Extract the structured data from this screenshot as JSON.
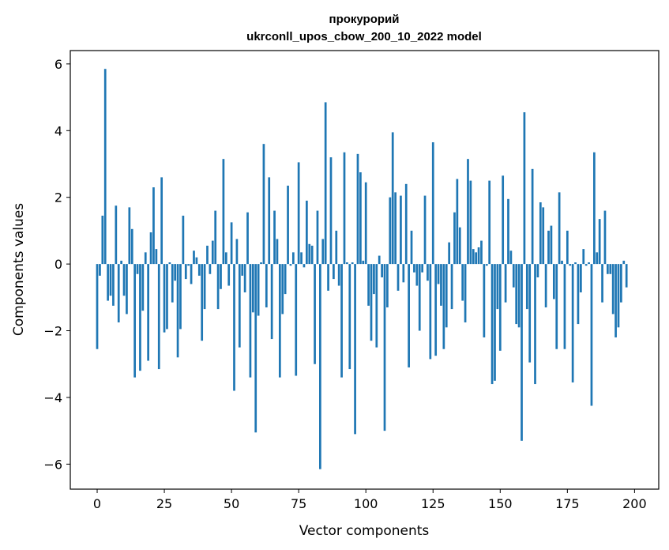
{
  "chart_data": {
    "type": "bar",
    "title": "прокурорий",
    "subtitle": "ukrconll_upos_cbow_200_10_2022 model",
    "xlabel": "Vector components",
    "ylabel": "Components values",
    "xlim": [
      -10,
      209
    ],
    "ylim": [
      -6.75,
      6.4
    ],
    "xticks": [
      0,
      25,
      50,
      75,
      100,
      125,
      150,
      175,
      200
    ],
    "yticks": [
      -6,
      -4,
      -2,
      0,
      2,
      4,
      6
    ],
    "xtick_labels": [
      "0",
      "25",
      "50",
      "75",
      "100",
      "125",
      "150",
      "175",
      "200"
    ],
    "ytick_labels": [
      "−6",
      "−4",
      "−2",
      "0",
      "2",
      "4",
      "6"
    ],
    "grid": false,
    "color": "#1f77b4",
    "values": [
      -2.55,
      -0.35,
      1.45,
      5.85,
      -1.1,
      -0.95,
      -1.25,
      1.75,
      -1.75,
      0.1,
      -0.95,
      -1.5,
      1.7,
      1.05,
      -3.4,
      -0.3,
      -3.2,
      -1.4,
      0.35,
      -2.9,
      0.95,
      2.3,
      0.45,
      -3.15,
      2.6,
      -2.05,
      -1.95,
      0.05,
      -1.15,
      -0.5,
      -2.8,
      -1.95,
      1.45,
      -0.45,
      -0.05,
      -0.6,
      0.4,
      0.2,
      -0.35,
      -2.3,
      -1.35,
      0.55,
      -0.3,
      0.7,
      1.6,
      -1.35,
      -0.75,
      3.15,
      0.35,
      -0.65,
      1.25,
      -3.8,
      0.75,
      -2.5,
      -0.35,
      -0.85,
      1.55,
      -3.4,
      -1.45,
      -5.05,
      -1.55,
      0.05,
      3.6,
      -1.3,
      2.6,
      -2.25,
      1.6,
      0.75,
      -3.4,
      -1.5,
      -0.9,
      2.35,
      -0.05,
      0.35,
      -3.35,
      3.05,
      0.35,
      -0.1,
      1.9,
      0.6,
      0.55,
      -3.0,
      1.6,
      -6.15,
      0.75,
      4.85,
      -0.8,
      3.2,
      -0.45,
      1.0,
      -0.65,
      -3.4,
      3.35,
      0.05,
      -3.15,
      0.05,
      -5.1,
      3.3,
      2.75,
      0.1,
      2.45,
      -1.25,
      -2.3,
      -0.9,
      -2.5,
      0.25,
      -0.4,
      -5.0,
      -1.3,
      2.0,
      3.95,
      2.15,
      -0.8,
      2.05,
      -0.55,
      2.4,
      -3.1,
      1.0,
      -0.25,
      -0.65,
      -2.0,
      -0.25,
      2.05,
      -0.5,
      -2.85,
      3.65,
      -2.75,
      -0.6,
      -1.25,
      -2.55,
      -1.9,
      0.65,
      -1.35,
      1.55,
      2.55,
      1.1,
      -1.1,
      -1.75,
      3.15,
      2.5,
      0.45,
      0.35,
      0.5,
      0.7,
      -2.2,
      -0.05,
      2.5,
      -3.6,
      -3.5,
      -1.35,
      -2.6,
      2.65,
      -1.15,
      1.95,
      0.4,
      -0.7,
      -1.8,
      -1.9,
      -5.3,
      4.55,
      -1.35,
      -2.95,
      2.85,
      -3.6,
      -0.4,
      1.85,
      1.7,
      -1.3,
      1.0,
      1.15,
      -1.05,
      -2.55,
      2.15,
      0.1,
      -2.55,
      1.0,
      -0.05,
      -3.55,
      0.05,
      -1.8,
      -0.85,
      0.45,
      -0.05,
      0.05,
      -4.25,
      3.35,
      0.35,
      1.35,
      -1.15,
      1.6,
      -0.3,
      -0.3,
      -1.5,
      -2.2,
      -1.9,
      -1.15,
      0.1,
      -0.7
    ]
  }
}
